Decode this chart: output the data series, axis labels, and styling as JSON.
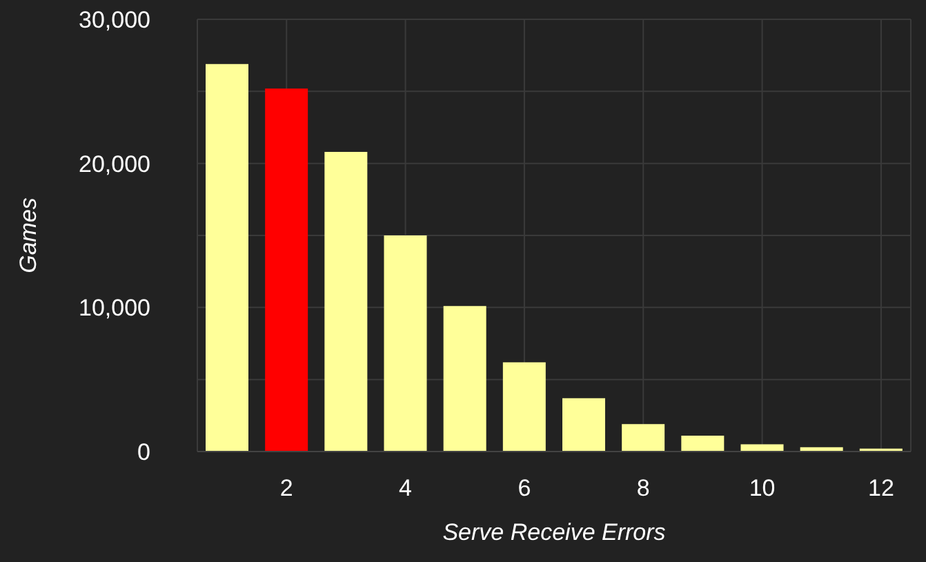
{
  "chart_data": {
    "type": "bar",
    "xlabel": "Serve Receive Errors",
    "ylabel": "Games",
    "x": [
      1,
      2,
      3,
      4,
      5,
      6,
      7,
      8,
      9,
      10,
      11,
      12
    ],
    "values": [
      26900,
      25200,
      20800,
      15000,
      10100,
      6200,
      3700,
      1900,
      1100,
      500,
      300,
      200
    ],
    "colors": [
      "#ffff99",
      "#ff0000",
      "#ffff99",
      "#ffff99",
      "#ffff99",
      "#ffff99",
      "#ffff99",
      "#ffff99",
      "#ffff99",
      "#ffff99",
      "#ffff99",
      "#ffff99"
    ],
    "xlim": [
      0.5,
      12.5
    ],
    "xticks": [
      2,
      4,
      6,
      8,
      10,
      12
    ],
    "ylim": [
      0,
      30000
    ],
    "yticks": [
      0,
      {
        "value": 5000,
        "label": null
      },
      {
        "value": 10000,
        "label": "10,000"
      },
      {
        "value": 15000,
        "label": null
      },
      {
        "value": 20000,
        "label": "20,000"
      },
      {
        "value": 25000,
        "label": null
      },
      {
        "value": 30000,
        "label": "30,000"
      }
    ],
    "grid": true,
    "legend": false
  }
}
